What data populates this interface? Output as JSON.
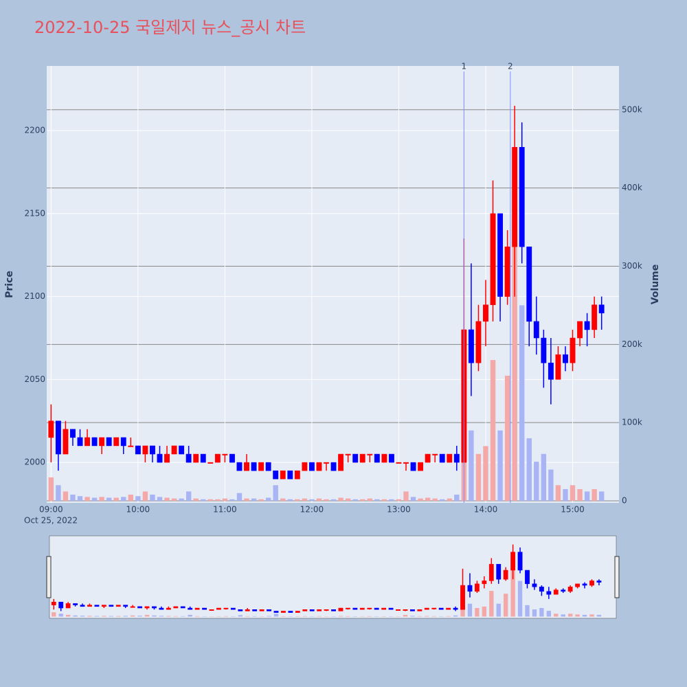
{
  "chart_data": {
    "type": "candlestick",
    "title": "2022-10-25 국일제지 뉴스_공시 차트",
    "y_label": "Price",
    "y2_label": "Volume",
    "x_date_label": "Oct 25, 2022",
    "x": [
      "2022-10-25 09:00",
      "2022-10-25 09:05",
      "2022-10-25 09:10",
      "2022-10-25 09:15",
      "2022-10-25 09:20",
      "2022-10-25 09:25",
      "2022-10-25 09:30",
      "2022-10-25 09:35",
      "2022-10-25 09:40",
      "2022-10-25 09:45",
      "2022-10-25 09:50",
      "2022-10-25 09:55",
      "2022-10-25 10:00",
      "2022-10-25 10:05",
      "2022-10-25 10:10",
      "2022-10-25 10:15",
      "2022-10-25 10:20",
      "2022-10-25 10:25",
      "2022-10-25 10:30",
      "2022-10-25 10:35",
      "2022-10-25 10:40",
      "2022-10-25 10:45",
      "2022-10-25 10:50",
      "2022-10-25 10:55",
      "2022-10-25 11:00",
      "2022-10-25 11:05",
      "2022-10-25 11:10",
      "2022-10-25 11:15",
      "2022-10-25 11:20",
      "2022-10-25 11:25",
      "2022-10-25 11:30",
      "2022-10-25 11:35",
      "2022-10-25 11:40",
      "2022-10-25 11:45",
      "2022-10-25 11:50",
      "2022-10-25 11:55",
      "2022-10-25 12:00",
      "2022-10-25 12:05",
      "2022-10-25 12:10",
      "2022-10-25 12:15",
      "2022-10-25 12:20",
      "2022-10-25 12:25",
      "2022-10-25 12:30",
      "2022-10-25 12:35",
      "2022-10-25 12:40",
      "2022-10-25 12:45",
      "2022-10-25 12:50",
      "2022-10-25 12:55",
      "2022-10-25 13:00",
      "2022-10-25 13:05",
      "2022-10-25 13:10",
      "2022-10-25 13:15",
      "2022-10-25 13:20",
      "2022-10-25 13:25",
      "2022-10-25 13:30",
      "2022-10-25 13:35",
      "2022-10-25 13:40",
      "2022-10-25 13:45",
      "2022-10-25 13:50",
      "2022-10-25 13:55",
      "2022-10-25 14:00",
      "2022-10-25 14:05",
      "2022-10-25 14:10",
      "2022-10-25 14:15",
      "2022-10-25 14:20",
      "2022-10-25 14:25",
      "2022-10-25 14:30",
      "2022-10-25 14:35",
      "2022-10-25 14:40",
      "2022-10-25 14:45",
      "2022-10-25 14:50",
      "2022-10-25 14:55",
      "2022-10-25 15:00",
      "2022-10-25 15:05",
      "2022-10-25 15:10",
      "2022-10-25 15:15",
      "2022-10-25 15:20"
    ],
    "open": [
      2015,
      2025,
      2005,
      2020,
      2015,
      2010,
      2015,
      2010,
      2015,
      2010,
      2015,
      2010,
      2010,
      2005,
      2010,
      2005,
      2000,
      2005,
      2010,
      2005,
      2000,
      2005,
      2000,
      2000,
      2005,
      2005,
      2000,
      1995,
      2000,
      1995,
      2000,
      1995,
      1990,
      1995,
      1990,
      1995,
      2000,
      1995,
      2000,
      2000,
      1995,
      2005,
      2005,
      2000,
      2005,
      2005,
      2000,
      2005,
      2000,
      2000,
      2000,
      1995,
      2000,
      2005,
      2005,
      2000,
      2005,
      2000,
      2080,
      2060,
      2085,
      2095,
      2150,
      2100,
      2130,
      2190,
      2130,
      2085,
      2075,
      2060,
      2050,
      2065,
      2060,
      2075,
      2085,
      2080,
      2095
    ],
    "high": [
      2035,
      2025,
      2025,
      2020,
      2020,
      2020,
      2015,
      2015,
      2015,
      2015,
      2015,
      2015,
      2010,
      2010,
      2010,
      2010,
      2010,
      2010,
      2010,
      2010,
      2005,
      2005,
      2000,
      2005,
      2005,
      2005,
      2000,
      2005,
      2000,
      2000,
      2000,
      1995,
      1995,
      1995,
      1995,
      2000,
      2000,
      2000,
      2000,
      2000,
      2005,
      2005,
      2005,
      2005,
      2005,
      2005,
      2005,
      2005,
      2000,
      2000,
      2000,
      2000,
      2005,
      2005,
      2005,
      2005,
      2010,
      2135,
      2120,
      2095,
      2110,
      2170,
      2150,
      2140,
      2215,
      2205,
      2130,
      2100,
      2080,
      2075,
      2070,
      2070,
      2080,
      2085,
      2090,
      2100,
      2100
    ],
    "low": [
      2000,
      1995,
      2005,
      2010,
      2010,
      2010,
      2010,
      2005,
      2010,
      2010,
      2005,
      2010,
      2005,
      2000,
      2000,
      2000,
      2000,
      2005,
      2005,
      2000,
      2000,
      2000,
      2000,
      2000,
      2000,
      2000,
      1995,
      1995,
      1995,
      1995,
      1995,
      1990,
      1990,
      1990,
      1990,
      1995,
      1995,
      1995,
      1995,
      1995,
      1995,
      2000,
      2000,
      2000,
      2000,
      2000,
      2000,
      2000,
      2000,
      1995,
      1995,
      1995,
      2000,
      2000,
      2000,
      2000,
      1995,
      2000,
      2040,
      2055,
      2070,
      2085,
      2085,
      2095,
      2100,
      2120,
      2070,
      2065,
      2045,
      2035,
      2050,
      2055,
      2055,
      2070,
      2070,
      2075,
      2080
    ],
    "close": [
      2025,
      2005,
      2020,
      2015,
      2010,
      2015,
      2010,
      2015,
      2010,
      2015,
      2010,
      2010,
      2005,
      2010,
      2005,
      2000,
      2005,
      2010,
      2005,
      2000,
      2005,
      2000,
      2000,
      2005,
      2005,
      2000,
      1995,
      2000,
      1995,
      2000,
      1995,
      1990,
      1995,
      1990,
      1995,
      2000,
      1995,
      2000,
      2000,
      1995,
      2005,
      2005,
      2000,
      2005,
      2005,
      2000,
      2005,
      2000,
      2000,
      2000,
      1995,
      2000,
      2005,
      2005,
      2000,
      2005,
      2000,
      2080,
      2060,
      2085,
      2095,
      2150,
      2100,
      2130,
      2190,
      2130,
      2085,
      2075,
      2060,
      2050,
      2065,
      2060,
      2075,
      2085,
      2080,
      2095,
      2090
    ],
    "volume": [
      30000,
      20000,
      12000,
      8000,
      6000,
      5000,
      4000,
      5000,
      4000,
      4000,
      5000,
      8000,
      6000,
      12000,
      8000,
      5000,
      4000,
      3000,
      3000,
      12000,
      3000,
      2000,
      2000,
      2000,
      3000,
      2000,
      10000,
      3000,
      3000,
      2000,
      4000,
      20000,
      3000,
      2000,
      2000,
      3000,
      2000,
      3000,
      2000,
      2000,
      4000,
      3000,
      2000,
      2000,
      3000,
      2000,
      2000,
      2000,
      2000,
      12000,
      5000,
      3000,
      4000,
      3000,
      2000,
      3000,
      8000,
      150000,
      90000,
      60000,
      70000,
      180000,
      90000,
      160000,
      330000,
      250000,
      80000,
      50000,
      60000,
      40000,
      20000,
      15000,
      20000,
      15000,
      12000,
      15000,
      12000
    ],
    "increasing_color": "#ff0000",
    "decreasing_color": "#0000ff",
    "increasing_volume_color": "#f4a8a8",
    "decreasing_volume_color": "#a8b4f4",
    "xlim": [
      "2022-10-25 08:57",
      "2022-10-25 15:32"
    ],
    "xticks": [
      {
        "value": "2022-10-25 09:00",
        "label": "09:00"
      },
      {
        "value": "2022-10-25 10:00",
        "label": "10:00"
      },
      {
        "value": "2022-10-25 11:00",
        "label": "11:00"
      },
      {
        "value": "2022-10-25 12:00",
        "label": "12:00"
      },
      {
        "value": "2022-10-25 13:00",
        "label": "13:00"
      },
      {
        "value": "2022-10-25 14:00",
        "label": "14:00"
      },
      {
        "value": "2022-10-25 15:00",
        "label": "15:00"
      }
    ],
    "ylim": [
      1975.6,
      2239
    ],
    "yticks": [
      2000,
      2050,
      2100,
      2150,
      2200
    ],
    "y2lim": [
      -2600,
      556000
    ],
    "y2ticks": [
      0,
      {
        "value": 100000,
        "label": "100k"
      },
      {
        "value": 200000,
        "label": "200k"
      },
      {
        "value": 300000,
        "label": "300k"
      },
      {
        "value": 400000,
        "label": "400k"
      },
      {
        "value": 500000,
        "label": "500k"
      }
    ],
    "annotations": [
      {
        "x": "2022-10-25 13:45",
        "label": "1"
      },
      {
        "x": "2022-10-25 14:17",
        "label": "2"
      }
    ],
    "grid": true
  }
}
